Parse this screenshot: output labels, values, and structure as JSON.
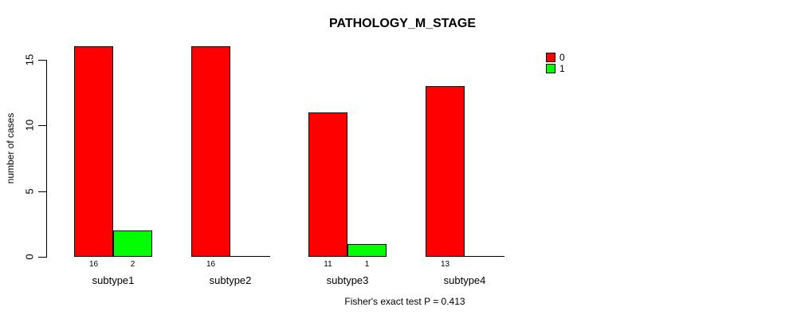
{
  "chart_data": {
    "type": "bar",
    "title": "PATHOLOGY_M_STAGE",
    "categories": [
      "subtype1",
      "subtype2",
      "subtype3",
      "subtype4"
    ],
    "series": [
      {
        "name": "0",
        "color": "#ff0000",
        "values": [
          16,
          16,
          11,
          13
        ]
      },
      {
        "name": "1",
        "color": "#00ff00",
        "values": [
          2,
          0,
          1,
          0
        ]
      }
    ],
    "xlabel": "",
    "ylabel": "number of cases",
    "ylim": [
      0,
      16
    ],
    "yticks": [
      0,
      5,
      10,
      15
    ],
    "grid": false,
    "legend_position": "right-outside",
    "bar_value_labels_shown": true,
    "annotation": "Fisher's exact test P = 0.413"
  }
}
